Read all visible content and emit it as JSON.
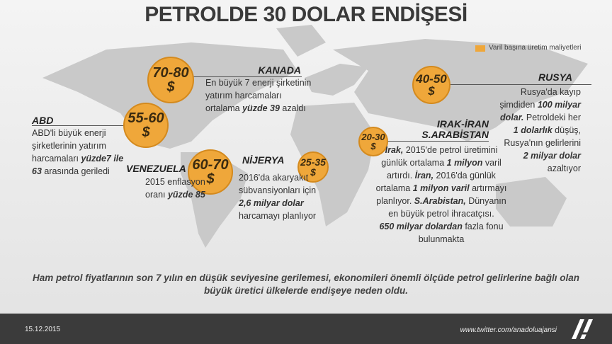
{
  "title": "PETROLDE 30 DOLAR ENDİŞESİ",
  "legend": "Varil başına üretim maliyetleri",
  "countries": [
    {
      "name": [
        "KANADA"
      ],
      "cost": "70-80",
      "currency": "$",
      "lines": [
        [
          {
            "text": "En büyük 7 enerji şirketinin"
          }
        ],
        [
          {
            "text": "yatırım harcamaları"
          }
        ],
        [
          {
            "text": "ortalama "
          },
          {
            "text": "yüzde 39",
            "bold": true
          },
          {
            "text": " azaldı"
          }
        ]
      ]
    },
    {
      "name": [
        "ABD"
      ],
      "cost": "55-60",
      "currency": "$",
      "lines": [
        [
          {
            "text": "ABD'li büyük enerji"
          }
        ],
        [
          {
            "text": "şirketlerinin yatırım"
          }
        ],
        [
          {
            "text": "harcamaları "
          },
          {
            "text": "yüzde7 ile",
            "bold": true
          }
        ],
        [
          {
            "text": "63",
            "bold": true
          },
          {
            "text": " arasında geriledi"
          }
        ]
      ]
    },
    {
      "name": [
        "VENEZUELA"
      ],
      "cost": "60-70",
      "currency": "$",
      "lines": [
        [
          {
            "text": "2015 enflasyon"
          }
        ],
        [
          {
            "text": "oranı "
          },
          {
            "text": "yüzde 85",
            "bold": true
          }
        ]
      ]
    },
    {
      "name": [
        "NİJERYA"
      ],
      "cost": "25-35",
      "currency": "$",
      "lines": [
        [
          {
            "text": "2016'da akaryakıt"
          }
        ],
        [
          {
            "text": "sübvansiyonları için"
          }
        ],
        [
          {
            "text": "2,6 milyar dolar",
            "bold": true
          }
        ],
        [
          {
            "text": "harcamayı planlıyor"
          }
        ]
      ]
    },
    {
      "name": [
        "IRAK-İRAN",
        "S.ARABİSTAN"
      ],
      "cost": "20-30",
      "currency": "$",
      "lines": [
        [
          {
            "text": "Irak,",
            "bold": true
          },
          {
            "text": " 2015'de petrol üretimini"
          }
        ],
        [
          {
            "text": "günlük ortalama "
          },
          {
            "text": "1 milyon",
            "bold": true
          },
          {
            "text": " varil"
          }
        ],
        [
          {
            "text": "artırdı. "
          },
          {
            "text": "İran,",
            "bold": true
          },
          {
            "text": " 2016'da günlük"
          }
        ],
        [
          {
            "text": "ortalama "
          },
          {
            "text": "1 milyon varil",
            "bold": true
          },
          {
            "text": " artırmayı"
          }
        ],
        [
          {
            "text": "planlıyor. "
          },
          {
            "text": "S.Arabistan,",
            "bold": true
          },
          {
            "text": " Dünyanın"
          }
        ],
        [
          {
            "text": "en büyük petrol ihracatçısı."
          }
        ],
        [
          {
            "text": "650 milyar dolardan",
            "bold": true
          },
          {
            "text": " fazla fonu"
          }
        ],
        [
          {
            "text": "bulunmakta"
          }
        ]
      ]
    },
    {
      "name": [
        "RUSYA"
      ],
      "cost": "40-50",
      "currency": "$",
      "lines": [
        [
          {
            "text": "Rusya'da kayıp"
          }
        ],
        [
          {
            "text": "şimdiden "
          },
          {
            "text": "100 milyar",
            "bold": true
          }
        ],
        [
          {
            "text": "dolar.",
            "bold": true
          },
          {
            "text": " Petroldeki her"
          }
        ],
        [
          {
            "text": "1 dolarlık",
            "bold": true
          },
          {
            "text": " düşüş,"
          }
        ],
        [
          {
            "text": "Rusya'nın gelirlerini"
          }
        ],
        [
          {
            "text": "2 milyar dolar",
            "bold": true
          }
        ],
        [
          {
            "text": "azaltıyor"
          }
        ]
      ]
    }
  ],
  "caption": [
    "Ham petrol fiyatlarının son 7 yılın en düşük seviyesine gerilemesi, ekonomileri önemli ölçüde petrol gelirlerine bağlı olan",
    "büyük üretici ülkelerde endişeye neden oldu."
  ],
  "footer": {
    "date": "15.12.2015",
    "url": "www.twitter.com/anadoluajansi"
  }
}
